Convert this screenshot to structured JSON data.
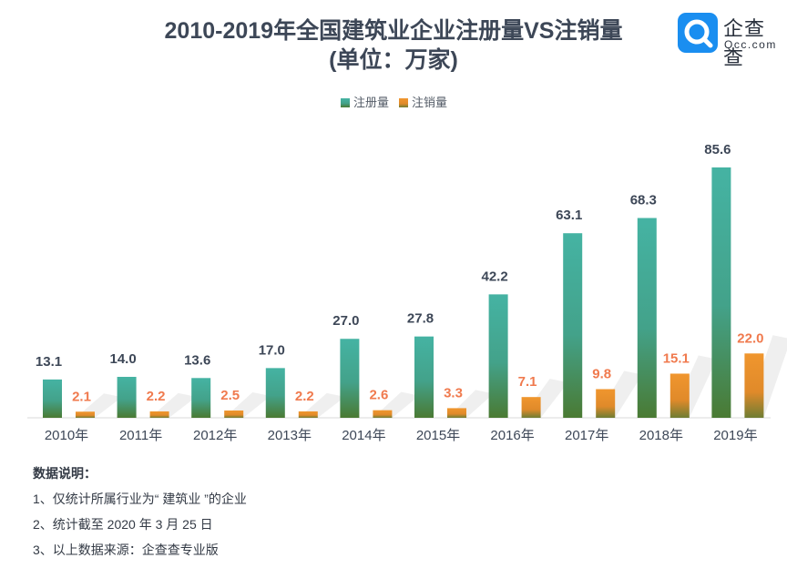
{
  "title_line1": "2010-2019年全国建筑业企业注册量VS注销量",
  "title_line2": "(单位：万家)",
  "logo": {
    "name": "企查查",
    "url": "Qcc.com"
  },
  "notes": {
    "heading": "数据说明：",
    "items": [
      "1、仅统计所属行业为“ 建筑业 ”的企业",
      "2、统计截至 2020 年 3 月 25 日",
      "3、以上数据来源：企查查专业版"
    ]
  },
  "colors": {
    "registered": "#45b3a3",
    "registered_bottom": "#4a7a33",
    "cancelled": "#f0962e",
    "cancelled_bottom": "#6f7d33",
    "registered_label": "#3d4757",
    "cancelled_label": "#f07a4e"
  },
  "chart_data": {
    "type": "bar",
    "categories": [
      "2010年",
      "2011年",
      "2012年",
      "2013年",
      "2014年",
      "2015年",
      "2016年",
      "2017年",
      "2018年",
      "2019年"
    ],
    "series": [
      {
        "name": "注册量",
        "values": [
          13.1,
          14.0,
          13.6,
          17.0,
          27.0,
          27.8,
          42.2,
          63.1,
          68.3,
          85.6
        ]
      },
      {
        "name": "注销量",
        "values": [
          2.1,
          2.2,
          2.5,
          2.2,
          2.6,
          3.3,
          7.1,
          9.8,
          15.1,
          22.0
        ]
      }
    ],
    "ylim": [
      0,
      90
    ],
    "grid": false,
    "legend": "top-center",
    "data_labels": true
  }
}
